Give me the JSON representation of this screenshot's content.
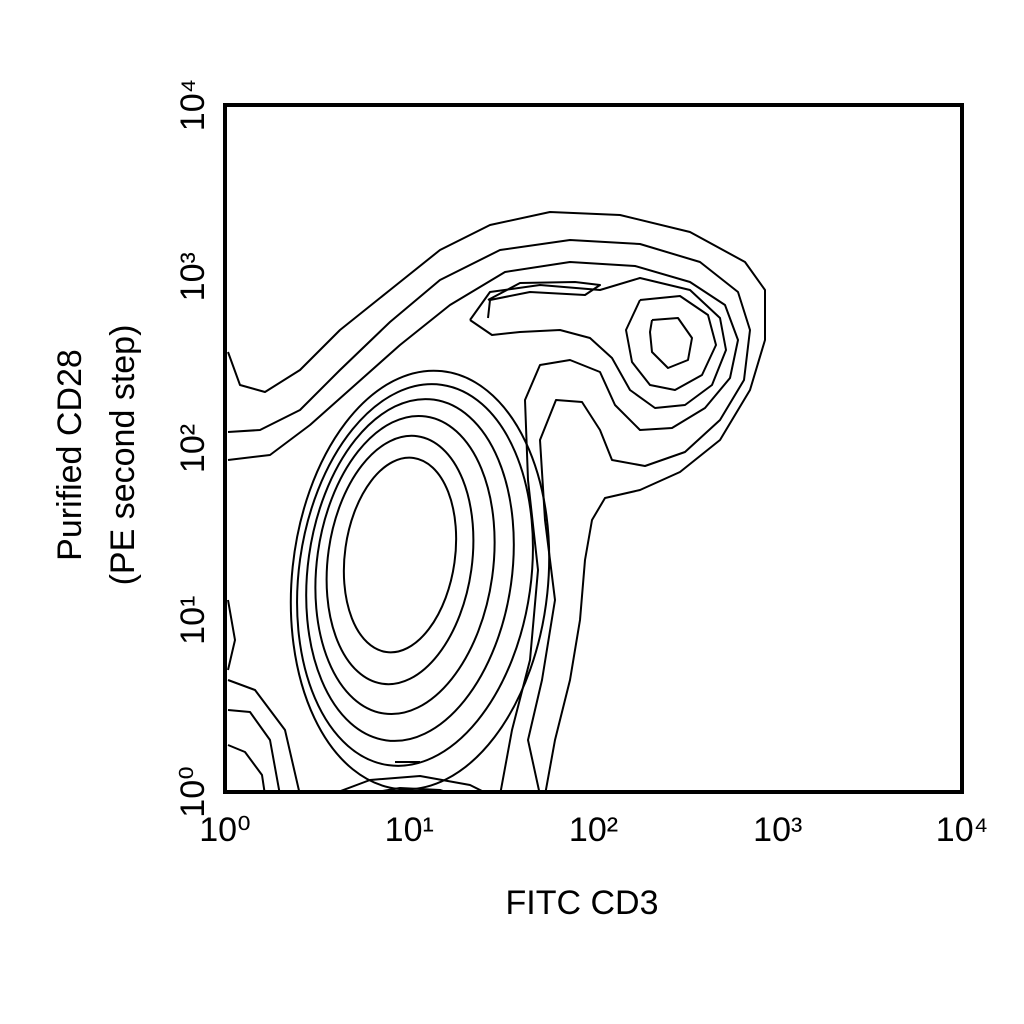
{
  "chart_data": {
    "type": "contour",
    "xlabel": "FITC CD3",
    "ylabel": [
      "Purified CD28",
      "(PE second step)"
    ],
    "xscale": "log",
    "yscale": "log",
    "xlim": [
      1,
      10000
    ],
    "ylim": [
      1,
      10000
    ],
    "xticks": [
      {
        "value": 1,
        "label": "10⁰"
      },
      {
        "value": 10,
        "label": "10¹"
      },
      {
        "value": 100,
        "label": "10²"
      },
      {
        "value": 1000,
        "label": "10³"
      },
      {
        "value": 10000,
        "label": "10⁴"
      }
    ],
    "yticks": [
      {
        "value": 1,
        "label": "10⁰"
      },
      {
        "value": 10,
        "label": "10¹"
      },
      {
        "value": 100,
        "label": "10²"
      },
      {
        "value": 1000,
        "label": "10³"
      },
      {
        "value": 10000,
        "label": "10⁴"
      }
    ],
    "grid": false,
    "color": "#000000"
  }
}
